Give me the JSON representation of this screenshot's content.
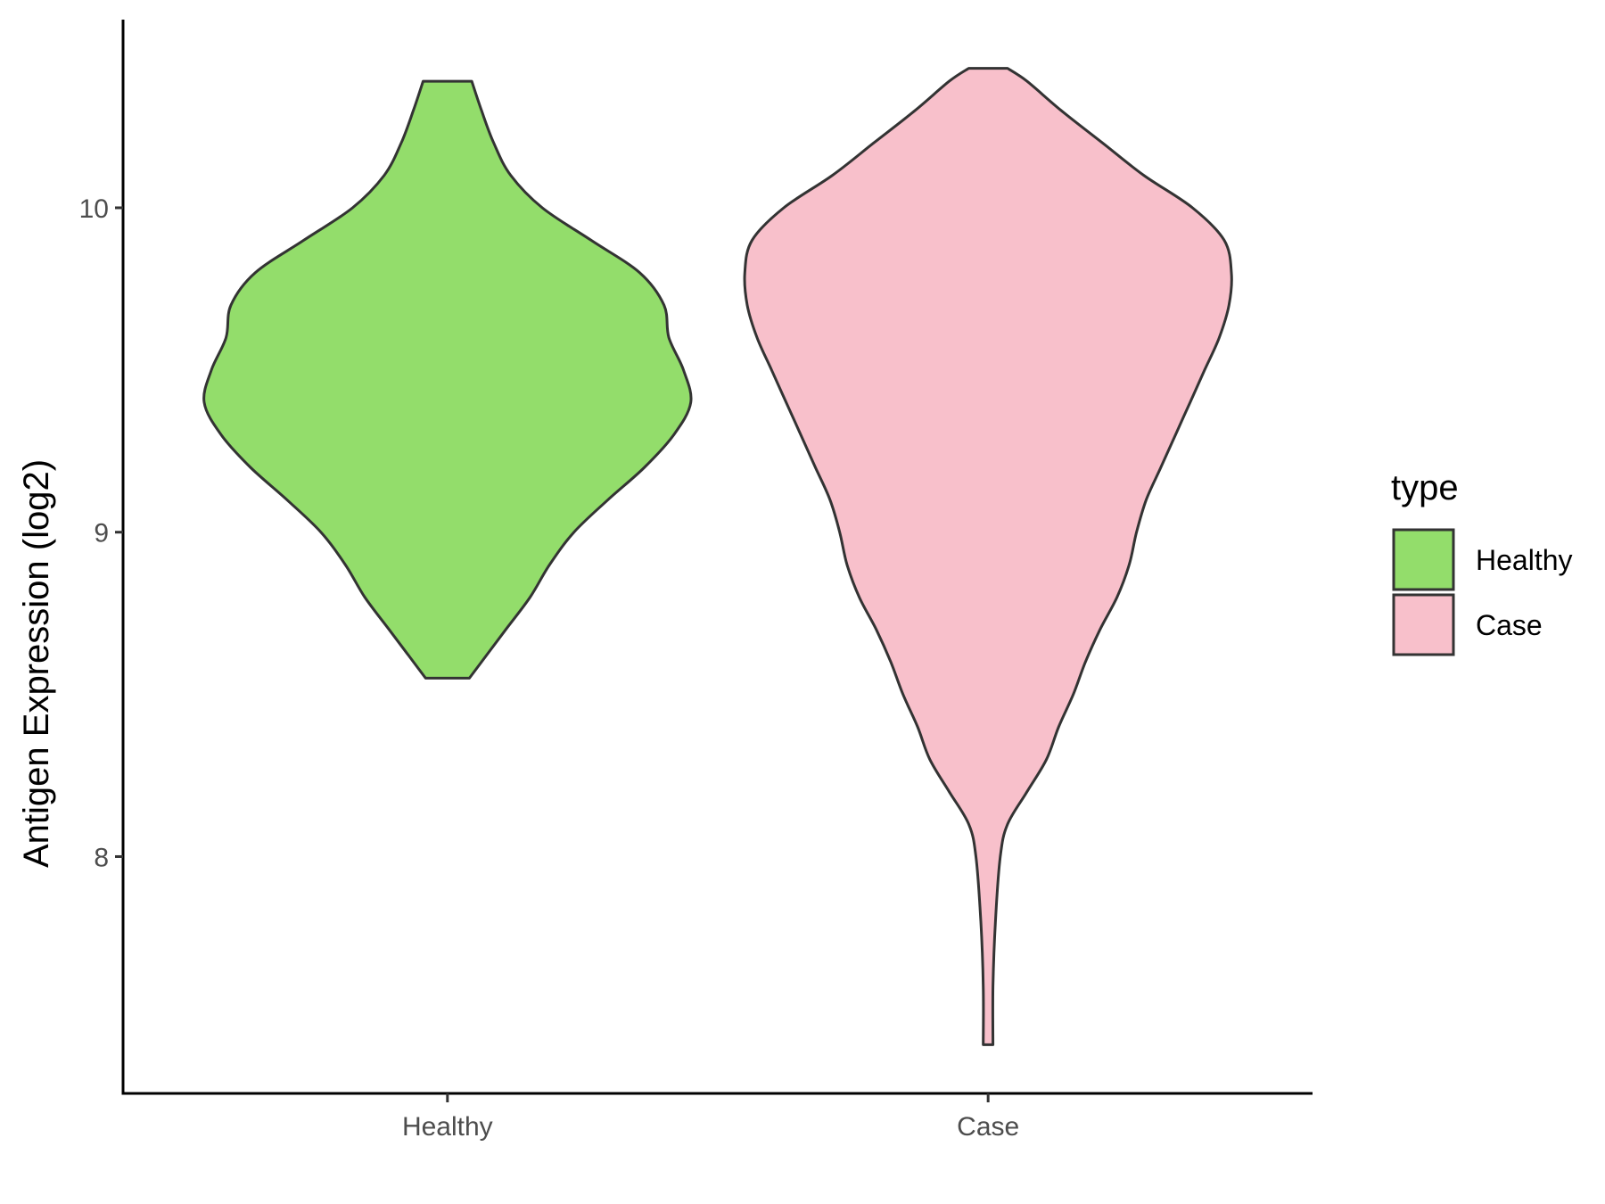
{
  "chart_data": {
    "type": "violin",
    "ylabel": "Antigen Expression (log2)",
    "xlabel": "",
    "categories": [
      "Healthy",
      "Case"
    ],
    "yticks": [
      8,
      9,
      10
    ],
    "ylim": [
      7.27,
      10.58
    ],
    "legend": {
      "title": "type",
      "placement": "right",
      "entries": [
        "Healthy",
        "Case"
      ]
    },
    "grid": false,
    "series": [
      {
        "name": "Healthy",
        "color": "#93dd6b",
        "density": [
          {
            "y": 8.55,
            "w": 0.09
          },
          {
            "y": 8.62,
            "w": 0.16
          },
          {
            "y": 8.7,
            "w": 0.24
          },
          {
            "y": 8.8,
            "w": 0.34
          },
          {
            "y": 8.9,
            "w": 0.42
          },
          {
            "y": 9.0,
            "w": 0.52
          },
          {
            "y": 9.1,
            "w": 0.66
          },
          {
            "y": 9.2,
            "w": 0.81
          },
          {
            "y": 9.3,
            "w": 0.93
          },
          {
            "y": 9.4,
            "w": 1.0
          },
          {
            "y": 9.5,
            "w": 0.97
          },
          {
            "y": 9.6,
            "w": 0.91
          },
          {
            "y": 9.7,
            "w": 0.89
          },
          {
            "y": 9.8,
            "w": 0.79
          },
          {
            "y": 9.9,
            "w": 0.59
          },
          {
            "y": 10.0,
            "w": 0.39
          },
          {
            "y": 10.1,
            "w": 0.26
          },
          {
            "y": 10.2,
            "w": 0.19
          },
          {
            "y": 10.3,
            "w": 0.14
          },
          {
            "y": 10.39,
            "w": 0.1
          }
        ]
      },
      {
        "name": "Case",
        "color": "#f8c0cb",
        "density": [
          {
            "y": 7.42,
            "w": 0.02
          },
          {
            "y": 7.6,
            "w": 0.02
          },
          {
            "y": 7.8,
            "w": 0.03
          },
          {
            "y": 8.0,
            "w": 0.05
          },
          {
            "y": 8.1,
            "w": 0.08
          },
          {
            "y": 8.2,
            "w": 0.16
          },
          {
            "y": 8.3,
            "w": 0.24
          },
          {
            "y": 8.4,
            "w": 0.29
          },
          {
            "y": 8.5,
            "w": 0.35
          },
          {
            "y": 8.6,
            "w": 0.4
          },
          {
            "y": 8.7,
            "w": 0.46
          },
          {
            "y": 8.8,
            "w": 0.53
          },
          {
            "y": 8.9,
            "w": 0.58
          },
          {
            "y": 9.0,
            "w": 0.61
          },
          {
            "y": 9.1,
            "w": 0.65
          },
          {
            "y": 9.2,
            "w": 0.71
          },
          {
            "y": 9.3,
            "w": 0.77
          },
          {
            "y": 9.4,
            "w": 0.83
          },
          {
            "y": 9.5,
            "w": 0.89
          },
          {
            "y": 9.6,
            "w": 0.95
          },
          {
            "y": 9.7,
            "w": 0.99
          },
          {
            "y": 9.8,
            "w": 1.0
          },
          {
            "y": 9.9,
            "w": 0.97
          },
          {
            "y": 10.0,
            "w": 0.84
          },
          {
            "y": 10.1,
            "w": 0.64
          },
          {
            "y": 10.2,
            "w": 0.47
          },
          {
            "y": 10.3,
            "w": 0.3
          },
          {
            "y": 10.39,
            "w": 0.16
          },
          {
            "y": 10.43,
            "w": 0.08
          }
        ]
      }
    ]
  }
}
